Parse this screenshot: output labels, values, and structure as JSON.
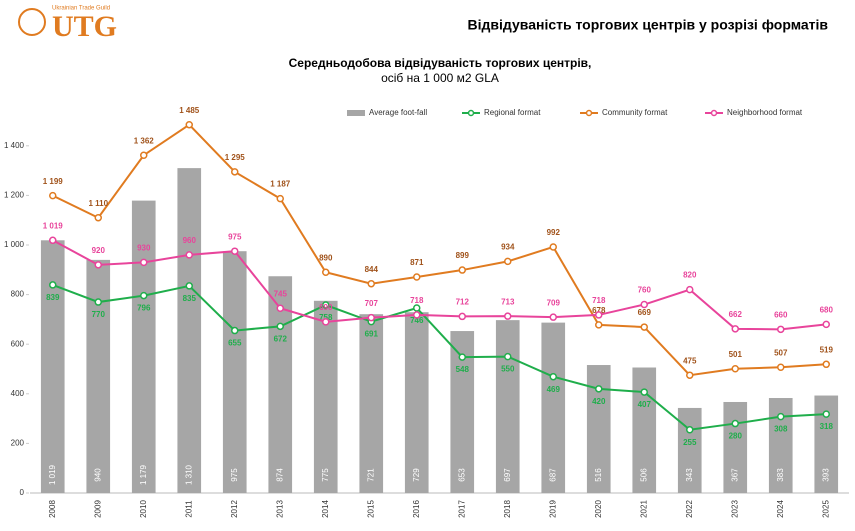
{
  "header": {
    "logo": "UTG",
    "logo_subtitle": "Ukrainian Trade Guild",
    "title": "Відвідуваність торгових центрів у розрізі форматів"
  },
  "chart_data": {
    "type": "bar",
    "title": "Середньодобова відвідуваність торгових центрів,",
    "subtitle": "осіб на 1 000 м2 GLA",
    "categories": [
      "2008",
      "2009",
      "2010",
      "2011",
      "2012",
      "2013",
      "2014",
      "2015",
      "2016",
      "2017",
      "2018",
      "2019",
      "2020",
      "2021",
      "2022",
      "2023",
      "2024",
      "2025"
    ],
    "ylim": [
      0,
      1500
    ],
    "yticks": [
      0,
      200,
      400,
      600,
      800,
      {
        "value": 1000,
        "label": "1 000"
      },
      {
        "value": 1200,
        "label": "1 200"
      },
      {
        "value": 1400,
        "label": "1 400"
      }
    ],
    "legend": "top",
    "grid": false,
    "series": [
      {
        "name": "Average foot-fall",
        "type": "bar",
        "color": "#a6a6a6",
        "values": [
          1019,
          940,
          1179,
          1310,
          975,
          874,
          775,
          721,
          729,
          653,
          697,
          687,
          516,
          506,
          343,
          367,
          383,
          393
        ],
        "value_labels": [
          "1 019",
          "940",
          "1 179",
          "1 310",
          "975",
          "874",
          "775",
          "721",
          "729",
          "653",
          "697",
          "687",
          "516",
          "506",
          "343",
          "367",
          "383",
          "393"
        ]
      },
      {
        "name": "Regional format",
        "type": "line",
        "color": "#1fae4b",
        "values": [
          839,
          770,
          796,
          835,
          655,
          672,
          758,
          691,
          746,
          548,
          550,
          469,
          420,
          407,
          255,
          280,
          308,
          318
        ]
      },
      {
        "name": "Community format",
        "type": "line",
        "color": "#e07b20",
        "values": [
          1199,
          1110,
          1362,
          1485,
          1295,
          1187,
          890,
          844,
          871,
          899,
          934,
          992,
          678,
          669,
          475,
          501,
          507,
          519
        ],
        "value_labels": [
          "1 199",
          "1 110",
          "1 362",
          "1 485",
          "1 295",
          "1 187",
          "890",
          "844",
          "871",
          "899",
          "934",
          "992",
          "678",
          "669",
          "475",
          "501",
          "507",
          "519"
        ]
      },
      {
        "name": "Neighborhood format",
        "type": "line",
        "color": "#e8449b",
        "values": [
          1019,
          920,
          930,
          960,
          975,
          745,
          690,
          707,
          718,
          712,
          713,
          709,
          718,
          760,
          820,
          662,
          660,
          680
        ],
        "value_labels": [
          "1 019",
          "920",
          "930",
          "960",
          "975",
          "745",
          "690",
          "707",
          "718",
          "712",
          "713",
          "709",
          "718",
          "760",
          "820",
          "662",
          "660",
          "680"
        ]
      }
    ]
  }
}
